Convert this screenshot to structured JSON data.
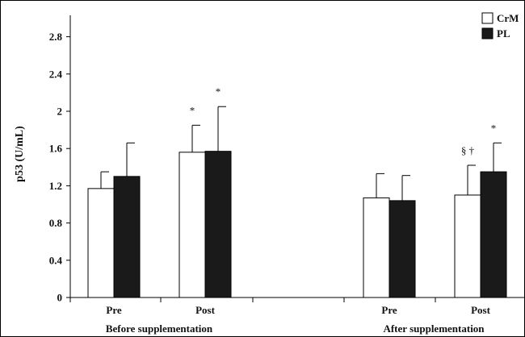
{
  "chart_data": {
    "type": "bar",
    "ylabel": "p53 (U/mL)",
    "ylim": [
      0,
      3.0
    ],
    "yticks": [
      "0",
      "0.4",
      "0.8",
      "1.2",
      "1.6",
      "2",
      "2.4",
      "2.8"
    ],
    "ytick_values": [
      0,
      0.4,
      0.8,
      1.2,
      1.6,
      2.0,
      2.4,
      2.8
    ],
    "groups": [
      "Before supplementation",
      "After supplementation"
    ],
    "categories": [
      "Pre",
      "Post",
      "Pre",
      "Post"
    ],
    "category_group": [
      0,
      0,
      1,
      1
    ],
    "series": [
      {
        "name": "CrM",
        "color": "#ffffff",
        "values": [
          1.17,
          1.56,
          1.07,
          1.1
        ],
        "errors": [
          0.18,
          0.29,
          0.26,
          0.32
        ],
        "annotations": [
          "",
          "*",
          "",
          "§ †"
        ]
      },
      {
        "name": "PL",
        "color": "#1a1a1a",
        "values": [
          1.3,
          1.57,
          1.04,
          1.35
        ],
        "errors": [
          0.36,
          0.48,
          0.27,
          0.31
        ],
        "annotations": [
          "",
          "*",
          "",
          "*"
        ]
      }
    ],
    "legend_position": "top-right",
    "grid": false
  }
}
